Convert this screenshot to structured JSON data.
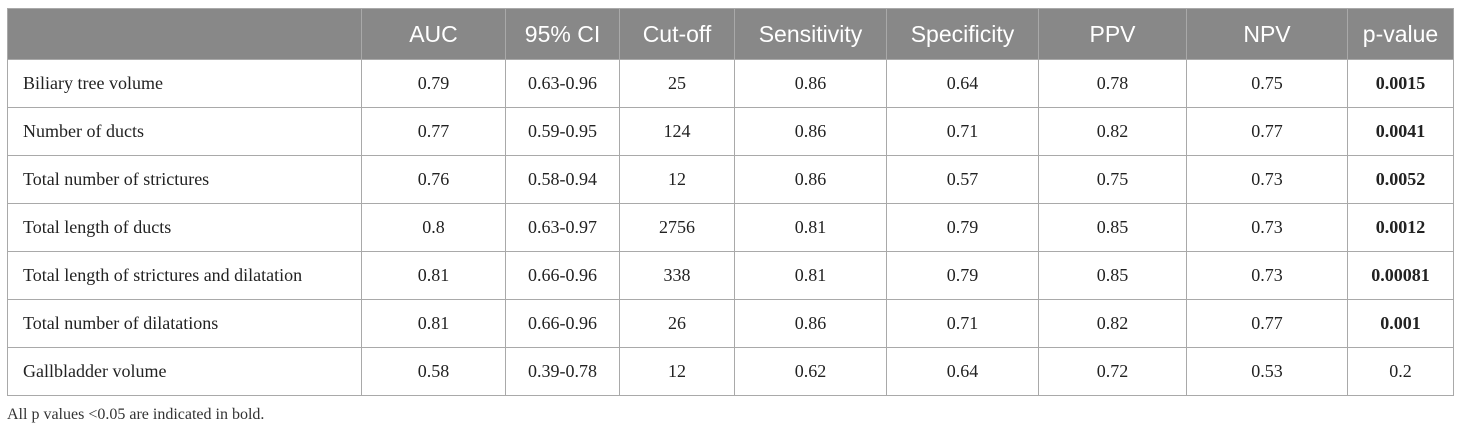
{
  "table": {
    "headers": [
      "",
      "AUC",
      "95% CI",
      "Cut-off",
      "Sensitivity",
      "Specificity",
      "PPV",
      "NPV",
      "p-value"
    ],
    "rows": [
      {
        "label": "Biliary tree volume",
        "auc": "0.79",
        "ci": "0.63-0.96",
        "cutoff": "25",
        "sensitivity": "0.86",
        "specificity": "0.64",
        "ppv": "0.78",
        "npv": "0.75",
        "p_value": "0.0015",
        "p_bold": true
      },
      {
        "label": "Number of ducts",
        "auc": "0.77",
        "ci": "0.59-0.95",
        "cutoff": "124",
        "sensitivity": "0.86",
        "specificity": "0.71",
        "ppv": "0.82",
        "npv": "0.77",
        "p_value": "0.0041",
        "p_bold": true
      },
      {
        "label": "Total number of strictures",
        "auc": "0.76",
        "ci": "0.58-0.94",
        "cutoff": "12",
        "sensitivity": "0.86",
        "specificity": "0.57",
        "ppv": "0.75",
        "npv": "0.73",
        "p_value": "0.0052",
        "p_bold": true
      },
      {
        "label": "Total length of ducts",
        "auc": "0.8",
        "ci": "0.63-0.97",
        "cutoff": "2756",
        "sensitivity": "0.81",
        "specificity": "0.79",
        "ppv": "0.85",
        "npv": "0.73",
        "p_value": "0.0012",
        "p_bold": true
      },
      {
        "label": "Total length of strictures and dilatation",
        "auc": "0.81",
        "ci": "0.66-0.96",
        "cutoff": "338",
        "sensitivity": "0.81",
        "specificity": "0.79",
        "ppv": "0.85",
        "npv": "0.73",
        "p_value": "0.00081",
        "p_bold": true
      },
      {
        "label": "Total number of dilatations",
        "auc": "0.81",
        "ci": "0.66-0.96",
        "cutoff": "26",
        "sensitivity": "0.86",
        "specificity": "0.71",
        "ppv": "0.82",
        "npv": "0.77",
        "p_value": "0.001",
        "p_bold": true
      },
      {
        "label": "Gallbladder volume",
        "auc": "0.58",
        "ci": "0.39-0.78",
        "cutoff": "12",
        "sensitivity": "0.62",
        "specificity": "0.64",
        "ppv": "0.72",
        "npv": "0.53",
        "p_value": "0.2",
        "p_bold": false
      }
    ]
  },
  "footnote": "All p values <0.05 are indicated in bold."
}
